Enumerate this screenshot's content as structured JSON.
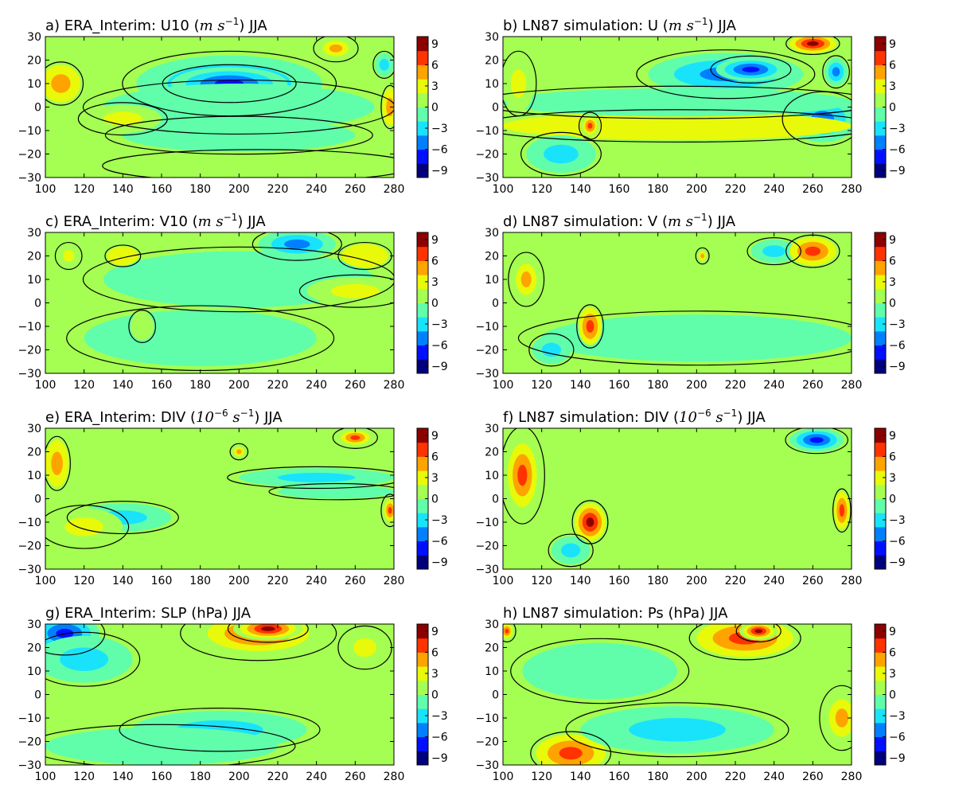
{
  "figure": {
    "background": "#ffffff"
  },
  "colormap": [
    "#00007f",
    "#0010ff",
    "#0080ff",
    "#19e3fb",
    "#60fdab",
    "#a4ff52",
    "#e8f90a",
    "#ffa300",
    "#ff3300",
    "#8d0000"
  ],
  "chart_data": [
    {
      "panel": "a",
      "type": "heatmap",
      "title_prefix": "a) ERA_Interim: U10 (",
      "title_math": "m s",
      "title_sup": "−1",
      "title_suffix": ") JJA",
      "xticks": [
        100,
        120,
        140,
        160,
        180,
        200,
        220,
        240,
        260,
        280
      ],
      "yticks": [
        -30,
        -20,
        -10,
        0,
        10,
        20,
        30
      ],
      "xlim": [
        100,
        280
      ],
      "ylim": [
        -30,
        30
      ],
      "colorbar_ticks": [
        9,
        6,
        3,
        0,
        -3,
        -6,
        -9
      ],
      "clim": [
        -10,
        10
      ],
      "background_value": 0,
      "blobs": [
        {
          "x": 195,
          "y": 10,
          "rx": 48,
          "ry": 12,
          "v": -6
        },
        {
          "x": 195,
          "y": 10,
          "rx": 30,
          "ry": 7,
          "v": -8
        },
        {
          "x": 200,
          "y": 0,
          "rx": 70,
          "ry": 10,
          "v": -2
        },
        {
          "x": 200,
          "y": -12,
          "rx": 60,
          "ry": 7,
          "v": -1
        },
        {
          "x": 108,
          "y": 10,
          "rx": 10,
          "ry": 8,
          "v": 4
        },
        {
          "x": 250,
          "y": 25,
          "rx": 10,
          "ry": 5,
          "v": 5
        },
        {
          "x": 275,
          "y": 18,
          "rx": 5,
          "ry": 5,
          "v": -4
        },
        {
          "x": 278,
          "y": 0,
          "rx": 4,
          "ry": 8,
          "v": 4
        },
        {
          "x": 140,
          "y": -5,
          "rx": 20,
          "ry": 6,
          "v": 3
        },
        {
          "x": 210,
          "y": -25,
          "rx": 70,
          "ry": 6,
          "v": 1
        }
      ]
    },
    {
      "panel": "b",
      "type": "heatmap",
      "title_prefix": "b) LN87 simulation: U (",
      "title_math": "m s",
      "title_sup": "−1",
      "title_suffix": ") JJA",
      "xticks": [
        100,
        120,
        140,
        160,
        180,
        200,
        220,
        240,
        260,
        280
      ],
      "yticks": [
        -30,
        -20,
        -10,
        0,
        10,
        20,
        30
      ],
      "xlim": [
        100,
        280
      ],
      "ylim": [
        -30,
        30
      ],
      "colorbar_ticks": [
        9,
        6,
        3,
        0,
        -3,
        -6,
        -9
      ],
      "clim": [
        -10,
        10
      ],
      "background_value": 0,
      "blobs": [
        {
          "x": 215,
          "y": 14,
          "rx": 40,
          "ry": 9,
          "v": -5
        },
        {
          "x": 228,
          "y": 16,
          "rx": 18,
          "ry": 5,
          "v": -7
        },
        {
          "x": 265,
          "y": -5,
          "rx": 18,
          "ry": 10,
          "v": -6
        },
        {
          "x": 190,
          "y": -8,
          "rx": 90,
          "ry": 6,
          "v": 2
        },
        {
          "x": 190,
          "y": 2,
          "rx": 90,
          "ry": 6,
          "v": -2
        },
        {
          "x": 130,
          "y": -20,
          "rx": 18,
          "ry": 8,
          "v": -4
        },
        {
          "x": 145,
          "y": -8,
          "rx": 5,
          "ry": 5,
          "v": 7
        },
        {
          "x": 260,
          "y": 27,
          "rx": 12,
          "ry": 4,
          "v": 8
        },
        {
          "x": 272,
          "y": 15,
          "rx": 6,
          "ry": 6,
          "v": -5
        },
        {
          "x": 108,
          "y": 10,
          "rx": 8,
          "ry": 12,
          "v": 3
        }
      ]
    },
    {
      "panel": "c",
      "type": "heatmap",
      "title_prefix": "c) ERA_Interim: V10 (",
      "title_math": "m s",
      "title_sup": "−1",
      "title_suffix": ") JJA",
      "xticks": [
        100,
        120,
        140,
        160,
        180,
        200,
        220,
        240,
        260,
        280
      ],
      "yticks": [
        -30,
        -20,
        -10,
        0,
        10,
        20,
        30
      ],
      "xlim": [
        100,
        280
      ],
      "ylim": [
        -30,
        30
      ],
      "colorbar_ticks": [
        9,
        6,
        3,
        0,
        -3,
        -6,
        -9
      ],
      "clim": [
        -10,
        10
      ],
      "background_value": 0,
      "blobs": [
        {
          "x": 230,
          "y": 25,
          "rx": 20,
          "ry": 6,
          "v": -5
        },
        {
          "x": 200,
          "y": 10,
          "rx": 70,
          "ry": 12,
          "v": -2
        },
        {
          "x": 180,
          "y": -15,
          "rx": 60,
          "ry": 12,
          "v": -1
        },
        {
          "x": 260,
          "y": 5,
          "rx": 25,
          "ry": 6,
          "v": 3
        },
        {
          "x": 265,
          "y": 20,
          "rx": 12,
          "ry": 5,
          "v": 2
        },
        {
          "x": 112,
          "y": 20,
          "rx": 6,
          "ry": 5,
          "v": 3
        },
        {
          "x": 140,
          "y": 20,
          "rx": 8,
          "ry": 4,
          "v": 2
        },
        {
          "x": 150,
          "y": -10,
          "rx": 6,
          "ry": 6,
          "v": 1
        }
      ]
    },
    {
      "panel": "d",
      "type": "heatmap",
      "title_prefix": "d) LN87 simulation: V (",
      "title_math": "m s",
      "title_sup": "−1",
      "title_suffix": ") JJA",
      "xticks": [
        100,
        120,
        140,
        160,
        180,
        200,
        220,
        240,
        260,
        280
      ],
      "yticks": [
        -30,
        -20,
        -10,
        0,
        10,
        20,
        30
      ],
      "xlim": [
        100,
        280
      ],
      "ylim": [
        -30,
        30
      ],
      "colorbar_ticks": [
        9,
        6,
        3,
        0,
        -3,
        -6,
        -9
      ],
      "clim": [
        -10,
        10
      ],
      "background_value": 0,
      "blobs": [
        {
          "x": 200,
          "y": -15,
          "rx": 80,
          "ry": 10,
          "v": -1
        },
        {
          "x": 240,
          "y": 22,
          "rx": 12,
          "ry": 5,
          "v": -4
        },
        {
          "x": 260,
          "y": 22,
          "rx": 12,
          "ry": 6,
          "v": 6
        },
        {
          "x": 145,
          "y": -10,
          "rx": 6,
          "ry": 8,
          "v": 6
        },
        {
          "x": 112,
          "y": 10,
          "rx": 8,
          "ry": 10,
          "v": 5
        },
        {
          "x": 125,
          "y": -20,
          "rx": 10,
          "ry": 6,
          "v": -3
        },
        {
          "x": 203,
          "y": 20,
          "rx": 3,
          "ry": 3,
          "v": 5
        }
      ]
    },
    {
      "panel": "e",
      "type": "heatmap",
      "title_prefix": "e) ERA_Interim: DIV (",
      "title_math": "10",
      "title_sup": "−6",
      "title_math2": " s",
      "title_sup2": "−1",
      "title_suffix": ") JJA",
      "xticks": [
        100,
        120,
        140,
        160,
        180,
        200,
        220,
        240,
        260,
        280
      ],
      "yticks": [
        -30,
        -20,
        -10,
        0,
        10,
        20,
        30
      ],
      "xlim": [
        100,
        280
      ],
      "ylim": [
        -30,
        30
      ],
      "colorbar_ticks": [
        9,
        6,
        3,
        0,
        -3,
        -6,
        -9
      ],
      "clim": [
        -10,
        10
      ],
      "background_value": 0,
      "blobs": [
        {
          "x": 240,
          "y": 9,
          "rx": 40,
          "ry": 4,
          "v": -4
        },
        {
          "x": 250,
          "y": 3,
          "rx": 30,
          "ry": 3,
          "v": -2
        },
        {
          "x": 140,
          "y": -8,
          "rx": 25,
          "ry": 6,
          "v": -3
        },
        {
          "x": 120,
          "y": -12,
          "rx": 20,
          "ry": 8,
          "v": 3
        },
        {
          "x": 260,
          "y": 26,
          "rx": 10,
          "ry": 4,
          "v": 7
        },
        {
          "x": 278,
          "y": -5,
          "rx": 4,
          "ry": 6,
          "v": 7
        },
        {
          "x": 106,
          "y": 15,
          "rx": 6,
          "ry": 10,
          "v": 4
        },
        {
          "x": 200,
          "y": 20,
          "rx": 4,
          "ry": 3,
          "v": 5
        }
      ]
    },
    {
      "panel": "f",
      "type": "heatmap",
      "title_prefix": "f) LN87 simulation: DIV (",
      "title_math": "10",
      "title_sup": "−6",
      "title_math2": " s",
      "title_sup2": "−1",
      "title_suffix": ") JJA",
      "xticks": [
        100,
        120,
        140,
        160,
        180,
        200,
        220,
        240,
        260,
        280
      ],
      "yticks": [
        -30,
        -20,
        -10,
        0,
        10,
        20,
        30
      ],
      "xlim": [
        100,
        280
      ],
      "ylim": [
        -30,
        30
      ],
      "colorbar_ticks": [
        9,
        6,
        3,
        0,
        -3,
        -6,
        -9
      ],
      "clim": [
        -10,
        10
      ],
      "background_value": 0,
      "blobs": [
        {
          "x": 110,
          "y": 10,
          "rx": 10,
          "ry": 18,
          "v": 7
        },
        {
          "x": 145,
          "y": -10,
          "rx": 8,
          "ry": 8,
          "v": 8
        },
        {
          "x": 262,
          "y": 25,
          "rx": 14,
          "ry": 5,
          "v": -7
        },
        {
          "x": 275,
          "y": -5,
          "rx": 4,
          "ry": 8,
          "v": 6
        },
        {
          "x": 135,
          "y": -22,
          "rx": 10,
          "ry": 6,
          "v": -4
        }
      ]
    },
    {
      "panel": "g",
      "type": "heatmap",
      "title_prefix": "g) ERA_Interim: SLP (hPa) JJA",
      "xticks": [
        100,
        120,
        140,
        160,
        180,
        200,
        220,
        240,
        260,
        280
      ],
      "yticks": [
        -30,
        -20,
        -10,
        0,
        10,
        20,
        30
      ],
      "xlim": [
        100,
        280
      ],
      "ylim": [
        -30,
        30
      ],
      "colorbar_ticks": [
        9,
        6,
        3,
        0,
        -3,
        -6,
        -9
      ],
      "clim": [
        -10,
        10
      ],
      "background_value": 0,
      "blobs": [
        {
          "x": 210,
          "y": 26,
          "rx": 35,
          "ry": 10,
          "v": 7
        },
        {
          "x": 215,
          "y": 28,
          "rx": 18,
          "ry": 5,
          "v": 9
        },
        {
          "x": 110,
          "y": 26,
          "rx": 18,
          "ry": 8,
          "v": -7
        },
        {
          "x": 120,
          "y": 15,
          "rx": 25,
          "ry": 10,
          "v": -3
        },
        {
          "x": 190,
          "y": -15,
          "rx": 45,
          "ry": 8,
          "v": -3
        },
        {
          "x": 160,
          "y": -22,
          "rx": 60,
          "ry": 8,
          "v": -2
        },
        {
          "x": 265,
          "y": 20,
          "rx": 12,
          "ry": 8,
          "v": 3
        }
      ]
    },
    {
      "panel": "h",
      "type": "heatmap",
      "title_prefix": "h) LN87 simulation: Ps (hPa) JJA",
      "xticks": [
        100,
        120,
        140,
        160,
        180,
        200,
        220,
        240,
        260,
        280
      ],
      "yticks": [
        -30,
        -20,
        -10,
        0,
        10,
        20,
        30
      ],
      "xlim": [
        100,
        280
      ],
      "ylim": [
        -30,
        30
      ],
      "colorbar_ticks": [
        9,
        6,
        3,
        0,
        -3,
        -6,
        -9
      ],
      "clim": [
        -10,
        10
      ],
      "background_value": 0,
      "blobs": [
        {
          "x": 225,
          "y": 24,
          "rx": 25,
          "ry": 8,
          "v": 6
        },
        {
          "x": 232,
          "y": 27,
          "rx": 10,
          "ry": 4,
          "v": 9
        },
        {
          "x": 135,
          "y": -25,
          "rx": 18,
          "ry": 8,
          "v": 6
        },
        {
          "x": 275,
          "y": -10,
          "rx": 10,
          "ry": 12,
          "v": 5
        },
        {
          "x": 190,
          "y": -15,
          "rx": 50,
          "ry": 10,
          "v": -3
        },
        {
          "x": 150,
          "y": 10,
          "rx": 40,
          "ry": 12,
          "v": -1
        },
        {
          "x": 102,
          "y": 27,
          "rx": 4,
          "ry": 4,
          "v": 7
        }
      ]
    }
  ]
}
